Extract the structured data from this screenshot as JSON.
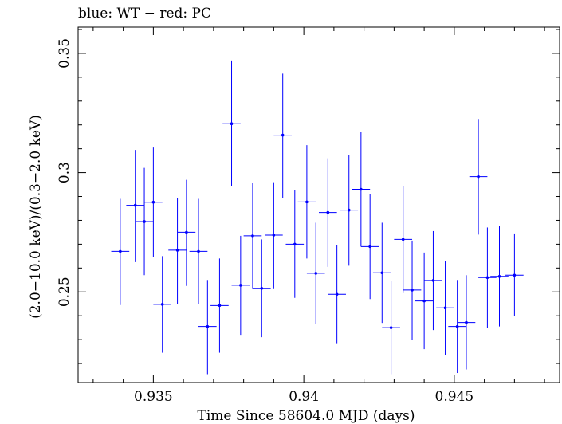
{
  "chart_data": {
    "type": "scatter",
    "title": "blue: WT − red: PC",
    "xlabel": "Time Since 58604.0 MJD (days)",
    "ylabel": "(2.0−10.0 keV)/(0.3−2.0 keV)",
    "xlim": [
      0.9325,
      0.9485
    ],
    "ylim": [
      0.212,
      0.361
    ],
    "x_ticks": [
      {
        "value": 0.935,
        "label": "0.935"
      },
      {
        "value": 0.94,
        "label": "0.94"
      },
      {
        "value": 0.945,
        "label": "0.945"
      }
    ],
    "y_ticks": [
      {
        "value": 0.25,
        "label": "0.25"
      },
      {
        "value": 0.3,
        "label": "0.3"
      },
      {
        "value": 0.35,
        "label": "0.35"
      }
    ],
    "x_minor_step": 0.001,
    "y_minor_step": 0.01,
    "grid": false,
    "series": [
      {
        "color": "#0000ff",
        "x_halfwidth": 0.0003,
        "points": [
          {
            "x": 0.9339,
            "y": 0.267,
            "lo": 0.2445,
            "hi": 0.289
          },
          {
            "x": 0.9344,
            "y": 0.2863,
            "lo": 0.2625,
            "hi": 0.3095
          },
          {
            "x": 0.9347,
            "y": 0.2795,
            "lo": 0.257,
            "hi": 0.302
          },
          {
            "x": 0.935,
            "y": 0.2876,
            "lo": 0.2645,
            "hi": 0.3105
          },
          {
            "x": 0.9353,
            "y": 0.2448,
            "lo": 0.2245,
            "hi": 0.265
          },
          {
            "x": 0.9358,
            "y": 0.2675,
            "lo": 0.245,
            "hi": 0.2895
          },
          {
            "x": 0.9361,
            "y": 0.275,
            "lo": 0.2525,
            "hi": 0.297
          },
          {
            "x": 0.9365,
            "y": 0.267,
            "lo": 0.245,
            "hi": 0.289
          },
          {
            "x": 0.9368,
            "y": 0.2355,
            "lo": 0.2155,
            "hi": 0.255
          },
          {
            "x": 0.9372,
            "y": 0.2443,
            "lo": 0.2245,
            "hi": 0.264
          },
          {
            "x": 0.9376,
            "y": 0.3205,
            "lo": 0.2945,
            "hi": 0.347
          },
          {
            "x": 0.9379,
            "y": 0.2528,
            "lo": 0.232,
            "hi": 0.2735
          },
          {
            "x": 0.9383,
            "y": 0.2735,
            "lo": 0.2515,
            "hi": 0.2955
          },
          {
            "x": 0.9386,
            "y": 0.2515,
            "lo": 0.231,
            "hi": 0.272
          },
          {
            "x": 0.939,
            "y": 0.2738,
            "lo": 0.2515,
            "hi": 0.296
          },
          {
            "x": 0.9393,
            "y": 0.3157,
            "lo": 0.2895,
            "hi": 0.3415
          },
          {
            "x": 0.9397,
            "y": 0.27,
            "lo": 0.2475,
            "hi": 0.2925
          },
          {
            "x": 0.9401,
            "y": 0.2877,
            "lo": 0.264,
            "hi": 0.3115
          },
          {
            "x": 0.9404,
            "y": 0.2578,
            "lo": 0.2365,
            "hi": 0.279
          },
          {
            "x": 0.9408,
            "y": 0.2833,
            "lo": 0.2605,
            "hi": 0.306
          },
          {
            "x": 0.9411,
            "y": 0.249,
            "lo": 0.2285,
            "hi": 0.2695
          },
          {
            "x": 0.9415,
            "y": 0.2843,
            "lo": 0.261,
            "hi": 0.3075
          },
          {
            "x": 0.9419,
            "y": 0.293,
            "lo": 0.269,
            "hi": 0.317
          },
          {
            "x": 0.9422,
            "y": 0.269,
            "lo": 0.247,
            "hi": 0.291
          },
          {
            "x": 0.9426,
            "y": 0.258,
            "lo": 0.237,
            "hi": 0.279
          },
          {
            "x": 0.9429,
            "y": 0.235,
            "lo": 0.2155,
            "hi": 0.2545
          },
          {
            "x": 0.9433,
            "y": 0.272,
            "lo": 0.2495,
            "hi": 0.2945
          },
          {
            "x": 0.9436,
            "y": 0.2508,
            "lo": 0.23,
            "hi": 0.2715
          },
          {
            "x": 0.944,
            "y": 0.2462,
            "lo": 0.226,
            "hi": 0.2665
          },
          {
            "x": 0.9443,
            "y": 0.2548,
            "lo": 0.234,
            "hi": 0.2755
          },
          {
            "x": 0.9447,
            "y": 0.2433,
            "lo": 0.2235,
            "hi": 0.263
          },
          {
            "x": 0.9451,
            "y": 0.2355,
            "lo": 0.216,
            "hi": 0.255
          },
          {
            "x": 0.9454,
            "y": 0.2372,
            "lo": 0.2175,
            "hi": 0.257
          },
          {
            "x": 0.9458,
            "y": 0.2983,
            "lo": 0.274,
            "hi": 0.3225
          },
          {
            "x": 0.9461,
            "y": 0.256,
            "lo": 0.235,
            "hi": 0.277
          },
          {
            "x": 0.9465,
            "y": 0.2565,
            "lo": 0.2355,
            "hi": 0.2775
          },
          {
            "x": 0.947,
            "y": 0.257,
            "lo": 0.24,
            "hi": 0.2745
          }
        ]
      }
    ]
  }
}
